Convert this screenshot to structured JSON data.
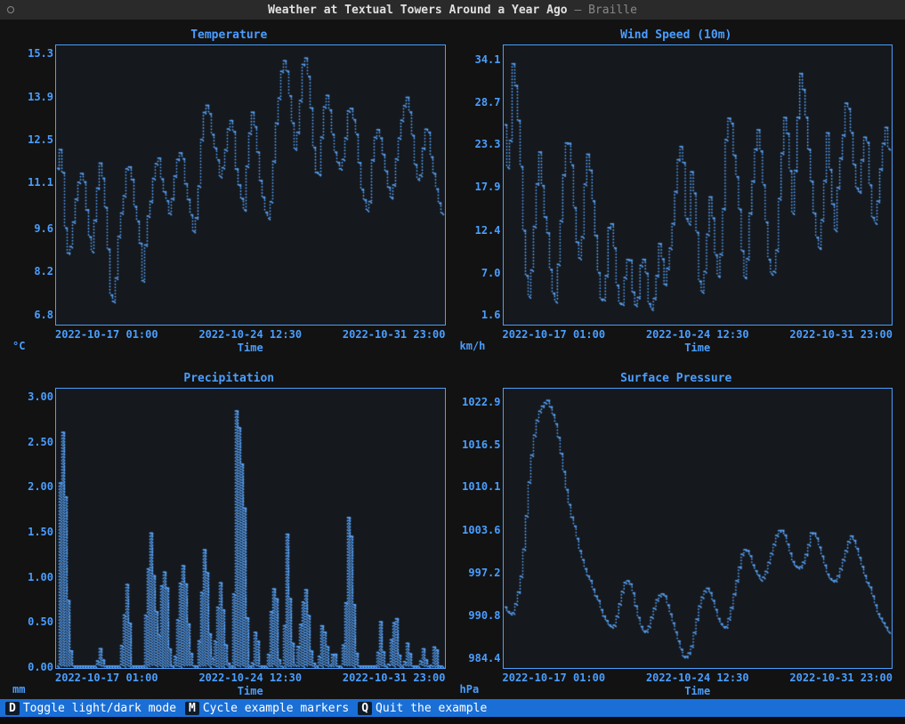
{
  "title_main": "Weather at Textual Towers Around a Year Ago",
  "title_separator": " — ",
  "title_suffix": "Braille",
  "colors": {
    "accent": "#4a9eff",
    "plot_line": "#5aa7ff",
    "plot_bg": "#15181c",
    "footer_bg": "#1a6fd6",
    "footer_key_bg": "#0d1b2a"
  },
  "xaxis_common": {
    "ticks": [
      "2022-10-17 01:00",
      "2022-10-24 12:30",
      "2022-10-31 23:00"
    ],
    "label": "Time"
  },
  "charts": [
    {
      "id": "temperature",
      "title": "Temperature",
      "unit": "°C",
      "ylim": [
        6.5,
        15.6
      ],
      "yticks": [
        15.3,
        13.9,
        12.5,
        11.1,
        9.6,
        8.2,
        6.8
      ],
      "ytick_decimals": 1,
      "series": [
        11.6,
        12.5,
        9.7,
        8.5,
        9.7,
        10.8,
        11.5,
        11.1,
        9.5,
        8.8,
        10.6,
        11.8,
        11.0,
        9.0,
        6.8,
        7.8,
        9.8,
        10.5,
        11.8,
        11.5,
        10.2,
        9.6,
        7.8,
        9.8,
        10.5,
        11.6,
        12.0,
        11.0,
        10.6,
        10.0,
        11.2,
        12.0,
        12.2,
        11.0,
        10.3,
        9.5,
        10.2,
        12.5,
        13.8,
        13.5,
        12.5,
        12.0,
        11.2,
        12.0,
        13.0,
        13.3,
        11.5,
        10.8,
        10.2,
        12.3,
        13.5,
        12.8,
        11.3,
        10.5,
        9.8,
        10.6,
        12.8,
        14.0,
        15.3,
        14.8,
        13.6,
        12.2,
        13.0,
        15.0,
        15.3,
        13.9,
        12.0,
        11.0,
        12.8,
        14.2,
        13.5,
        12.3,
        11.8,
        11.5,
        12.5,
        13.8,
        13.3,
        12.6,
        11.0,
        10.5,
        10.0,
        12.0,
        13.0,
        12.6,
        11.8,
        11.0,
        10.5,
        11.8,
        12.8,
        13.6,
        14.0,
        13.0,
        11.6,
        11.0,
        12.3,
        13.2,
        12.0,
        11.2,
        10.5,
        10.0
      ]
    },
    {
      "id": "wind-speed",
      "title": "Wind Speed (10m)",
      "unit": "km/h",
      "ylim": [
        0.5,
        36.0
      ],
      "yticks": [
        34.1,
        28.7,
        23.3,
        17.9,
        12.4,
        7.0,
        1.6
      ],
      "ytick_decimals": 1,
      "series": [
        26,
        18,
        34.1,
        30,
        22,
        10,
        3,
        8,
        17,
        23,
        15,
        12,
        5,
        3,
        10,
        19,
        25,
        22,
        14,
        8,
        12,
        23,
        20,
        14,
        7,
        2,
        6,
        15,
        11,
        4,
        2,
        7,
        10,
        4,
        2,
        8,
        9,
        3,
        2,
        6,
        12,
        5,
        8,
        12,
        18,
        24,
        21,
        10,
        20,
        16,
        6,
        4,
        11,
        18,
        10,
        6,
        12,
        25,
        28,
        22,
        18,
        10,
        5,
        14,
        20,
        26,
        22,
        15,
        8,
        6,
        10,
        20,
        27,
        24,
        14,
        22,
        33,
        30,
        24,
        18,
        12,
        10,
        16,
        25,
        18,
        12,
        20,
        24,
        30,
        26,
        20,
        16,
        22,
        26,
        18,
        12,
        16,
        22,
        26,
        22
      ]
    },
    {
      "id": "precipitation",
      "title": "Precipitation",
      "unit": "mm",
      "ylim": [
        0,
        3.1
      ],
      "yticks": [
        3.0,
        2.5,
        2.0,
        1.5,
        1.0,
        0.5,
        0.0
      ],
      "ytick_decimals": 2,
      "series": [
        0,
        3.0,
        2.0,
        0.3,
        0,
        0,
        0,
        0,
        0,
        0,
        0,
        0.2,
        0,
        0,
        0,
        0,
        0,
        0.5,
        1.0,
        0,
        0,
        0,
        0,
        0.9,
        1.5,
        0.8,
        0.3,
        1.1,
        1.0,
        0,
        0,
        0.6,
        1.2,
        0.9,
        0.2,
        0,
        0,
        0.8,
        1.5,
        0.4,
        0,
        0.6,
        1.0,
        0.3,
        0,
        0,
        3.0,
        2.5,
        1.8,
        0,
        0,
        0.5,
        0,
        0,
        0,
        0.7,
        1.0,
        0,
        0,
        1.5,
        0.4,
        0,
        0.3,
        0.7,
        0.9,
        0.2,
        0,
        0,
        0.5,
        0.3,
        0,
        0.2,
        0,
        0,
        0.6,
        2.0,
        0.8,
        0,
        0,
        0,
        0,
        0,
        0,
        0.5,
        0,
        0,
        0.4,
        0.6,
        0,
        0,
        0.3,
        0,
        0,
        0,
        0.2,
        0,
        0,
        0.3,
        0,
        0
      ]
    },
    {
      "id": "surface-pressure",
      "title": "Surface Pressure",
      "unit": "hPa",
      "ylim": [
        983.0,
        1025.0
      ],
      "yticks": [
        1022.9,
        1016.5,
        1010.1,
        1003.6,
        997.2,
        990.8,
        984.4
      ],
      "ytick_decimals": 1,
      "series": [
        992,
        991,
        991,
        993,
        996,
        1002,
        1010,
        1016,
        1020,
        1022,
        1023,
        1023.5,
        1022,
        1020,
        1017,
        1013,
        1009,
        1006,
        1004,
        1001,
        999,
        997,
        996,
        994,
        993,
        991,
        990,
        989,
        989,
        991,
        994,
        996,
        996,
        994,
        991,
        989,
        988,
        989,
        991,
        993,
        994,
        994,
        992,
        990,
        988,
        986,
        984.4,
        984.5,
        986,
        989,
        992,
        994,
        995,
        994,
        992,
        990,
        989,
        989,
        991,
        994,
        997,
        1000,
        1001,
        1000,
        998,
        997,
        996,
        997,
        999,
        1001,
        1003,
        1004,
        1003,
        1001,
        999,
        998,
        998,
        999,
        1001,
        1003.6,
        1003,
        1001,
        999,
        997,
        996,
        996,
        997,
        999,
        1001,
        1003,
        1002,
        1000,
        998,
        996,
        995,
        993,
        991,
        990,
        989,
        988
      ]
    }
  ],
  "footer": [
    {
      "key": "D",
      "label": "Toggle light/dark mode"
    },
    {
      "key": "M",
      "label": "Cycle example markers"
    },
    {
      "key": "Q",
      "label": "Quit the example"
    }
  ]
}
